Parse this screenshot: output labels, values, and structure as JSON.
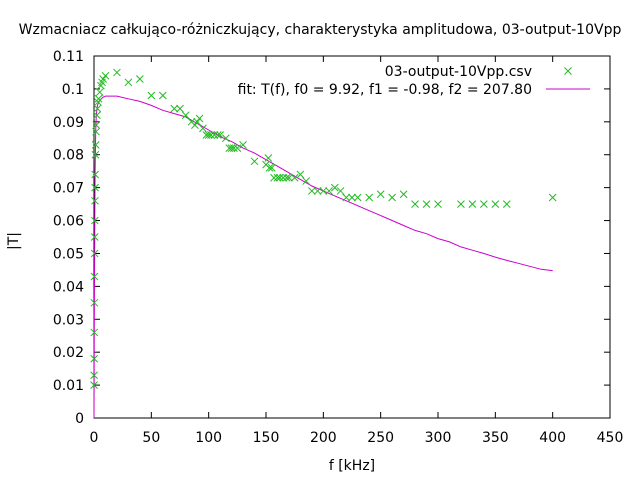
{
  "chart_data": {
    "type": "scatter",
    "title": "Wzmacniacz całkująco-różniczkujący, charakterystyka amplitudowa, 03-output-10Vpp",
    "xlabel": "f [kHz]",
    "ylabel": "|T|",
    "xlim": [
      0,
      450
    ],
    "ylim": [
      0,
      0.11
    ],
    "x_ticks": [
      0,
      50,
      100,
      150,
      200,
      250,
      300,
      350,
      400,
      450
    ],
    "y_ticks": [
      0,
      0.01,
      0.02,
      0.03,
      0.04,
      0.05,
      0.06,
      0.07,
      0.08,
      0.09,
      0.1,
      0.11
    ],
    "grid": false,
    "legend_position": "top-right",
    "series": [
      {
        "name": "03-output-10Vpp.csv",
        "style": "points",
        "marker": "x",
        "color": "#22bb22",
        "points": [
          [
            0.05,
            0.01
          ],
          [
            0.1,
            0.013
          ],
          [
            0.15,
            0.018
          ],
          [
            0.2,
            0.026
          ],
          [
            0.3,
            0.035
          ],
          [
            0.4,
            0.043
          ],
          [
            0.5,
            0.05
          ],
          [
            0.6,
            0.055
          ],
          [
            0.7,
            0.06
          ],
          [
            0.8,
            0.066
          ],
          [
            0.9,
            0.07
          ],
          [
            1,
            0.074
          ],
          [
            1.2,
            0.08
          ],
          [
            1.5,
            0.083
          ],
          [
            1.8,
            0.087
          ],
          [
            2,
            0.089
          ],
          [
            2.5,
            0.092
          ],
          [
            3,
            0.094
          ],
          [
            3.5,
            0.096
          ],
          [
            4,
            0.097
          ],
          [
            5,
            0.099
          ],
          [
            6,
            0.101
          ],
          [
            7,
            0.102
          ],
          [
            8,
            0.103
          ],
          [
            10,
            0.104
          ],
          [
            20,
            0.105
          ],
          [
            30,
            0.102
          ],
          [
            40,
            0.103
          ],
          [
            50,
            0.098
          ],
          [
            60,
            0.098
          ],
          [
            70,
            0.094
          ],
          [
            75,
            0.094
          ],
          [
            80,
            0.092
          ],
          [
            85,
            0.09
          ],
          [
            88,
            0.089
          ],
          [
            90,
            0.09
          ],
          [
            92,
            0.091
          ],
          [
            95,
            0.088
          ],
          [
            98,
            0.086
          ],
          [
            100,
            0.086
          ],
          [
            102,
            0.086
          ],
          [
            105,
            0.086
          ],
          [
            108,
            0.086
          ],
          [
            110,
            0.086
          ],
          [
            115,
            0.085
          ],
          [
            118,
            0.082
          ],
          [
            120,
            0.082
          ],
          [
            122,
            0.082
          ],
          [
            125,
            0.082
          ],
          [
            130,
            0.083
          ],
          [
            140,
            0.078
          ],
          [
            150,
            0.077
          ],
          [
            152,
            0.079
          ],
          [
            153,
            0.076
          ],
          [
            155,
            0.076
          ],
          [
            157,
            0.073
          ],
          [
            160,
            0.073
          ],
          [
            162,
            0.073
          ],
          [
            165,
            0.073
          ],
          [
            168,
            0.073
          ],
          [
            170,
            0.073
          ],
          [
            175,
            0.073
          ],
          [
            180,
            0.074
          ],
          [
            185,
            0.072
          ],
          [
            190,
            0.069
          ],
          [
            195,
            0.069
          ],
          [
            200,
            0.069
          ],
          [
            205,
            0.069
          ],
          [
            210,
            0.07
          ],
          [
            215,
            0.069
          ],
          [
            220,
            0.067
          ],
          [
            225,
            0.067
          ],
          [
            230,
            0.067
          ],
          [
            240,
            0.067
          ],
          [
            250,
            0.068
          ],
          [
            260,
            0.067
          ],
          [
            270,
            0.068
          ],
          [
            280,
            0.065
          ],
          [
            290,
            0.065
          ],
          [
            300,
            0.065
          ],
          [
            320,
            0.065
          ],
          [
            330,
            0.065
          ],
          [
            340,
            0.065
          ],
          [
            350,
            0.065
          ],
          [
            360,
            0.065
          ],
          [
            400,
            0.067
          ]
        ]
      },
      {
        "name": "fit: T(f), f0 = 9.92, f1 = -0.98, f2 = 207.80",
        "style": "line",
        "color": "#cc00cc",
        "points": [
          [
            0,
            0
          ],
          [
            0.3,
            0.03
          ],
          [
            0.6,
            0.055
          ],
          [
            1,
            0.075
          ],
          [
            1.5,
            0.087
          ],
          [
            2,
            0.092
          ],
          [
            3,
            0.095
          ],
          [
            5,
            0.0965
          ],
          [
            8,
            0.0975
          ],
          [
            10,
            0.0978
          ],
          [
            20,
            0.0978
          ],
          [
            30,
            0.097
          ],
          [
            40,
            0.0962
          ],
          [
            50,
            0.095
          ],
          [
            60,
            0.0935
          ],
          [
            70,
            0.0925
          ],
          [
            80,
            0.0915
          ],
          [
            90,
            0.0895
          ],
          [
            100,
            0.0875
          ],
          [
            110,
            0.0855
          ],
          [
            120,
            0.084
          ],
          [
            130,
            0.082
          ],
          [
            140,
            0.0805
          ],
          [
            150,
            0.0785
          ],
          [
            160,
            0.0765
          ],
          [
            170,
            0.0745
          ],
          [
            180,
            0.0725
          ],
          [
            190,
            0.0705
          ],
          [
            200,
            0.069
          ],
          [
            210,
            0.0675
          ],
          [
            220,
            0.066
          ],
          [
            230,
            0.0645
          ],
          [
            240,
            0.063
          ],
          [
            250,
            0.0615
          ],
          [
            260,
            0.06
          ],
          [
            270,
            0.0585
          ],
          [
            280,
            0.057
          ],
          [
            290,
            0.056
          ],
          [
            300,
            0.0545
          ],
          [
            310,
            0.0535
          ],
          [
            320,
            0.052
          ],
          [
            330,
            0.051
          ],
          [
            340,
            0.05
          ],
          [
            350,
            0.0489
          ],
          [
            360,
            0.0479
          ],
          [
            370,
            0.047
          ],
          [
            380,
            0.0461
          ],
          [
            390,
            0.0452
          ],
          [
            400,
            0.0448
          ]
        ]
      }
    ]
  }
}
